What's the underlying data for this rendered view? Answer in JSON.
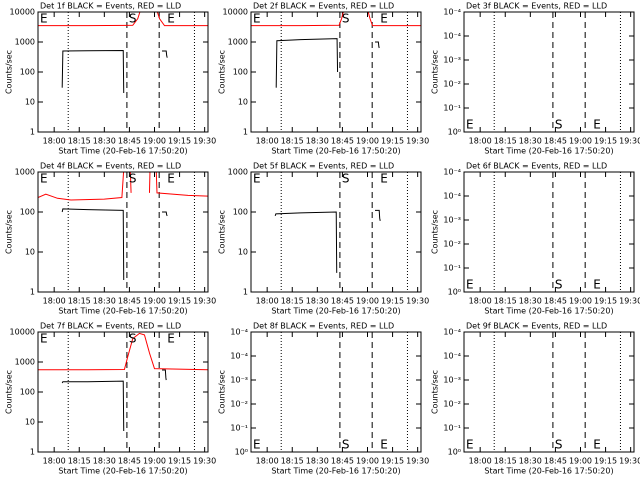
{
  "chart_data": [
    {
      "type": "line",
      "title": "Det 1f BLACK = Events, RED = LLD",
      "xlabel": "Start Time (20-Feb-16 17:50:20)",
      "ylabel": "Counts/sec",
      "log": true,
      "xlim": [
        1070.33,
        1172
      ],
      "xticks": [
        {
          "value": 1080,
          "label": "18:00"
        },
        {
          "value": 1095,
          "label": "18:15"
        },
        {
          "value": 1110,
          "label": "18:30"
        },
        {
          "value": 1125,
          "label": "18:45"
        },
        {
          "value": 1140,
          "label": "19:00"
        },
        {
          "value": 1155,
          "label": "19:15"
        },
        {
          "value": 1170,
          "label": "19:30"
        }
      ],
      "ylim": [
        1,
        10000
      ],
      "yticks": [
        1,
        10,
        100,
        1000,
        10000
      ],
      "series": [
        {
          "color": "#000000",
          "x": [
            1084.8,
            1085.2,
            1100,
            1121.3,
            1121.6,
            1130,
            1144.5,
            1147,
            1147.3,
            1147.6
          ],
          "values": [
            30,
            500,
            510,
            520,
            20,
            null,
            500,
            500,
            350,
            300
          ]
        },
        {
          "color": "#ff0000",
          "x": [
            1070.33,
            1100,
            1127,
            1130,
            1133,
            1140,
            1143,
            1146,
            1172
          ],
          "values": [
            3500,
            3500,
            3600,
            6000,
            20000,
            20000,
            6000,
            3500,
            3500
          ]
        }
      ],
      "vlines": [
        {
          "x": 1088.4,
          "style": "dotted"
        },
        {
          "x": 1123.5,
          "style": "dashed"
        },
        {
          "x": 1142.8,
          "style": "dashed"
        },
        {
          "x": 1163.9,
          "style": "dotted"
        }
      ],
      "annotations": [
        {
          "text": "E",
          "x": 1071.5
        },
        {
          "text": "S",
          "x": 1124.7
        },
        {
          "text": "E",
          "x": 1147.6
        }
      ]
    },
    {
      "type": "line",
      "title": "Det 2f BLACK = Events, RED = LLD",
      "xlabel": "Start Time (20-Feb-16 17:50:20)",
      "ylabel": "Counts/sec",
      "log": true,
      "xlim": [
        1070.33,
        1172
      ],
      "xticks": [
        {
          "value": 1080,
          "label": "18:00"
        },
        {
          "value": 1095,
          "label": "18:15"
        },
        {
          "value": 1110,
          "label": "18:30"
        },
        {
          "value": 1125,
          "label": "18:45"
        },
        {
          "value": 1140,
          "label": "19:00"
        },
        {
          "value": 1155,
          "label": "19:15"
        },
        {
          "value": 1170,
          "label": "19:30"
        }
      ],
      "ylim": [
        1,
        10000
      ],
      "yticks": [
        1,
        10,
        100,
        1000,
        10000
      ],
      "series": [
        {
          "color": "#000000",
          "x": [
            1085.4,
            1085.8,
            1100,
            1121.8,
            1122.1,
            1130,
            1144.5,
            1146.5,
            1146.8,
            1147
          ],
          "values": [
            30,
            1100,
            1200,
            1300,
            100,
            null,
            1000,
            1000,
            700,
            630
          ]
        },
        {
          "color": "#ff0000",
          "x": [
            1070.33,
            1100,
            1123,
            1124.5,
            1127,
            1139,
            1141.5,
            1143,
            1172
          ],
          "values": [
            3500,
            3500,
            3600,
            6000,
            20000,
            20000,
            6000,
            3500,
            3500
          ]
        }
      ],
      "vlines": [
        {
          "x": 1088.4,
          "style": "dotted"
        },
        {
          "x": 1123.5,
          "style": "dashed"
        },
        {
          "x": 1142.8,
          "style": "dashed"
        },
        {
          "x": 1163.9,
          "style": "dotted"
        }
      ],
      "annotations": [
        {
          "text": "E",
          "x": 1071.5
        },
        {
          "text": "S",
          "x": 1124.7
        },
        {
          "text": "E",
          "x": 1147.6
        }
      ]
    },
    {
      "type": "line",
      "title": "Det 3f BLACK = Events, RED = LLD",
      "xlabel": "Start Time (20-Feb-16 17:50:20)",
      "ylabel": "Counts/sec",
      "log": false,
      "xlim": [
        1070.33,
        1172
      ],
      "xticks": [
        {
          "value": 1080,
          "label": "18:00"
        },
        {
          "value": 1095,
          "label": "18:15"
        },
        {
          "value": 1110,
          "label": "18:30"
        },
        {
          "value": 1125,
          "label": "18:45"
        },
        {
          "value": 1140,
          "label": "19:00"
        },
        {
          "value": 1155,
          "label": "19:15"
        },
        {
          "value": 1170,
          "label": "19:30"
        }
      ],
      "ylim": [
        0,
        5
      ],
      "yticks": [
        {
          "value": 0,
          "label": "10⁰"
        },
        {
          "value": 1,
          "label": "10⁻¹"
        },
        {
          "value": 2,
          "label": "10⁻²"
        },
        {
          "value": 3,
          "label": "10⁻³"
        },
        {
          "value": 4,
          "label": "10⁻⁴"
        },
        {
          "value": 5,
          "label": "10⁻⁴"
        }
      ],
      "series": [],
      "vlines": [
        {
          "x": 1088.4,
          "style": "dotted"
        },
        {
          "x": 1123.5,
          "style": "dashed"
        },
        {
          "x": 1142.8,
          "style": "dashed"
        },
        {
          "x": 1163.9,
          "style": "dotted"
        }
      ],
      "annotations": [
        {
          "text": "E",
          "x": 1071.5
        },
        {
          "text": "S",
          "x": 1124.7
        },
        {
          "text": "E",
          "x": 1147.6
        }
      ]
    },
    {
      "type": "line",
      "title": "Det 4f BLACK = Events, RED = LLD",
      "xlabel": "Start Time (20-Feb-16 17:50:20)",
      "ylabel": "Counts/sec",
      "log": true,
      "xlim": [
        1070.33,
        1172
      ],
      "xticks": [
        {
          "value": 1080,
          "label": "18:00"
        },
        {
          "value": 1095,
          "label": "18:15"
        },
        {
          "value": 1110,
          "label": "18:30"
        },
        {
          "value": 1125,
          "label": "18:45"
        },
        {
          "value": 1140,
          "label": "19:00"
        },
        {
          "value": 1155,
          "label": "19:15"
        },
        {
          "value": 1170,
          "label": "19:30"
        }
      ],
      "ylim": [
        1,
        1000
      ],
      "yticks": [
        1,
        10,
        100,
        1000
      ],
      "series": [
        {
          "color": "#000000",
          "x": [
            1084.8,
            1085.2,
            1100,
            1121.3,
            1121.6,
            1130,
            1144.5,
            1147,
            1147.3,
            1147.6
          ],
          "values": [
            100,
            120,
            115,
            110,
            2,
            null,
            100,
            100,
            85,
            80
          ]
        },
        {
          "color": "#ff0000",
          "x": [
            1070.33,
            1075,
            1082,
            1090,
            1110,
            1120.5,
            1121.5,
            1122.5,
            1124.5,
            1126,
            1130,
            1137,
            1138,
            1140,
            1141.5,
            1160,
            1172
          ],
          "values": [
            230,
            280,
            220,
            200,
            210,
            230,
            1000,
            20000,
            20000,
            300,
            null,
            300,
            20000,
            20000,
            300,
            260,
            250
          ]
        }
      ],
      "vlines": [
        {
          "x": 1088.4,
          "style": "dotted"
        },
        {
          "x": 1123.5,
          "style": "dashed"
        },
        {
          "x": 1142.8,
          "style": "dashed"
        },
        {
          "x": 1163.9,
          "style": "dotted"
        }
      ],
      "annotations": [
        {
          "text": "E",
          "x": 1071.5
        },
        {
          "text": "S",
          "x": 1124.7
        },
        {
          "text": "E",
          "x": 1147.6
        }
      ]
    },
    {
      "type": "line",
      "title": "Det 5f BLACK = Events, RED = LLD",
      "xlabel": "Start Time (20-Feb-16 17:50:20)",
      "ylabel": "Counts/sec",
      "log": true,
      "xlim": [
        1070.33,
        1172
      ],
      "xticks": [
        {
          "value": 1080,
          "label": "18:00"
        },
        {
          "value": 1095,
          "label": "18:15"
        },
        {
          "value": 1110,
          "label": "18:30"
        },
        {
          "value": 1125,
          "label": "18:45"
        },
        {
          "value": 1140,
          "label": "19:00"
        },
        {
          "value": 1155,
          "label": "19:15"
        },
        {
          "value": 1170,
          "label": "19:30"
        }
      ],
      "ylim": [
        1,
        1000
      ],
      "yticks": [
        1,
        10,
        100,
        1000
      ],
      "series": [
        {
          "color": "#000000",
          "x": [
            1084.8,
            1085.2,
            1100,
            1121.3,
            1121.6,
            1130,
            1144.5,
            1147,
            1147.3,
            1147.6
          ],
          "values": [
            80,
            90,
            95,
            100,
            3,
            null,
            110,
            110,
            70,
            60
          ]
        }
      ],
      "vlines": [
        {
          "x": 1088.4,
          "style": "dotted"
        },
        {
          "x": 1123.5,
          "style": "dashed"
        },
        {
          "x": 1142.8,
          "style": "dashed"
        },
        {
          "x": 1163.9,
          "style": "dotted"
        }
      ],
      "annotations": [
        {
          "text": "E",
          "x": 1071.5
        },
        {
          "text": "S",
          "x": 1124.7
        },
        {
          "text": "E",
          "x": 1147.6
        }
      ]
    },
    {
      "type": "line",
      "title": "Det 6f BLACK = Events, RED = LLD",
      "xlabel": "Start Time (20-Feb-16 17:50:20)",
      "ylabel": "Counts/sec",
      "log": false,
      "xlim": [
        1070.33,
        1172
      ],
      "xticks": [
        {
          "value": 1080,
          "label": "18:00"
        },
        {
          "value": 1095,
          "label": "18:15"
        },
        {
          "value": 1110,
          "label": "18:30"
        },
        {
          "value": 1125,
          "label": "18:45"
        },
        {
          "value": 1140,
          "label": "19:00"
        },
        {
          "value": 1155,
          "label": "19:15"
        },
        {
          "value": 1170,
          "label": "19:30"
        }
      ],
      "ylim": [
        0,
        5
      ],
      "yticks": [
        {
          "value": 0,
          "label": "10⁰"
        },
        {
          "value": 1,
          "label": "10⁻¹"
        },
        {
          "value": 2,
          "label": "10⁻²"
        },
        {
          "value": 3,
          "label": "10⁻³"
        },
        {
          "value": 4,
          "label": "10⁻⁴"
        },
        {
          "value": 5,
          "label": "10⁻⁴"
        }
      ],
      "series": [],
      "vlines": [
        {
          "x": 1088.4,
          "style": "dotted"
        },
        {
          "x": 1123.5,
          "style": "dashed"
        },
        {
          "x": 1142.8,
          "style": "dashed"
        },
        {
          "x": 1163.9,
          "style": "dotted"
        }
      ],
      "annotations": [
        {
          "text": "E",
          "x": 1071.5
        },
        {
          "text": "S",
          "x": 1124.7
        },
        {
          "text": "E",
          "x": 1147.6
        }
      ]
    },
    {
      "type": "line",
      "title": "Det 7f BLACK = Events, RED = LLD",
      "xlabel": "Start Time (20-Feb-16 17:50:20)",
      "ylabel": "Counts/sec",
      "log": true,
      "xlim": [
        1070.33,
        1172
      ],
      "xticks": [
        {
          "value": 1080,
          "label": "18:00"
        },
        {
          "value": 1095,
          "label": "18:15"
        },
        {
          "value": 1110,
          "label": "18:30"
        },
        {
          "value": 1125,
          "label": "18:45"
        },
        {
          "value": 1140,
          "label": "19:00"
        },
        {
          "value": 1155,
          "label": "19:15"
        },
        {
          "value": 1170,
          "label": "19:30"
        }
      ],
      "ylim": [
        1,
        10000
      ],
      "yticks": [
        1,
        10,
        100,
        1000,
        10000
      ],
      "series": [
        {
          "color": "#000000",
          "x": [
            1084.8,
            1085.2,
            1100,
            1121.3,
            1121.6,
            1130,
            1144.5,
            1146.5,
            1146.8,
            1147
          ],
          "values": [
            200,
            220,
            220,
            230,
            5,
            null,
            540,
            540,
            300,
            250
          ]
        },
        {
          "color": "#ff0000",
          "x": [
            1070.33,
            1100,
            1122,
            1124,
            1127,
            1131,
            1134,
            1137,
            1140,
            1172
          ],
          "values": [
            550,
            550,
            560,
            1500,
            6000,
            9000,
            8000,
            2000,
            600,
            550
          ]
        }
      ],
      "vlines": [
        {
          "x": 1088.4,
          "style": "dotted"
        },
        {
          "x": 1123.5,
          "style": "dashed"
        },
        {
          "x": 1142.8,
          "style": "dashed"
        },
        {
          "x": 1163.9,
          "style": "dotted"
        }
      ],
      "annotations": [
        {
          "text": "E",
          "x": 1071.5
        },
        {
          "text": "S",
          "x": 1124.7
        },
        {
          "text": "E",
          "x": 1147.6
        }
      ]
    },
    {
      "type": "line",
      "title": "Det 8f BLACK = Events, RED = LLD",
      "xlabel": "Start Time (20-Feb-16 17:50:20)",
      "ylabel": "Counts/sec",
      "log": false,
      "xlim": [
        1070.33,
        1172
      ],
      "xticks": [
        {
          "value": 1080,
          "label": "18:00"
        },
        {
          "value": 1095,
          "label": "18:15"
        },
        {
          "value": 1110,
          "label": "18:30"
        },
        {
          "value": 1125,
          "label": "18:45"
        },
        {
          "value": 1140,
          "label": "19:00"
        },
        {
          "value": 1155,
          "label": "19:15"
        },
        {
          "value": 1170,
          "label": "19:30"
        }
      ],
      "ylim": [
        0,
        5
      ],
      "yticks": [
        {
          "value": 0,
          "label": "10⁰"
        },
        {
          "value": 1,
          "label": "10⁻¹"
        },
        {
          "value": 2,
          "label": "10⁻²"
        },
        {
          "value": 3,
          "label": "10⁻³"
        },
        {
          "value": 4,
          "label": "10⁻⁴"
        },
        {
          "value": 5,
          "label": "10⁻⁴"
        }
      ],
      "series": [],
      "vlines": [
        {
          "x": 1088.4,
          "style": "dotted"
        },
        {
          "x": 1123.5,
          "style": "dashed"
        },
        {
          "x": 1142.8,
          "style": "dashed"
        },
        {
          "x": 1163.9,
          "style": "dotted"
        }
      ],
      "annotations": [
        {
          "text": "E",
          "x": 1071.5
        },
        {
          "text": "S",
          "x": 1124.7
        },
        {
          "text": "E",
          "x": 1147.6
        }
      ]
    },
    {
      "type": "line",
      "title": "Det 9f BLACK = Events, RED = LLD",
      "xlabel": "Start Time (20-Feb-16 17:50:20)",
      "ylabel": "Counts/sec",
      "log": false,
      "xlim": [
        1070.33,
        1172
      ],
      "xticks": [
        {
          "value": 1080,
          "label": "18:00"
        },
        {
          "value": 1095,
          "label": "18:15"
        },
        {
          "value": 1110,
          "label": "18:30"
        },
        {
          "value": 1125,
          "label": "18:45"
        },
        {
          "value": 1140,
          "label": "19:00"
        },
        {
          "value": 1155,
          "label": "19:15"
        },
        {
          "value": 1170,
          "label": "19:30"
        }
      ],
      "ylim": [
        0,
        5
      ],
      "yticks": [
        {
          "value": 0,
          "label": "10⁰"
        },
        {
          "value": 1,
          "label": "10⁻¹"
        },
        {
          "value": 2,
          "label": "10⁻²"
        },
        {
          "value": 3,
          "label": "10⁻³"
        },
        {
          "value": 4,
          "label": "10⁻⁴"
        },
        {
          "value": 5,
          "label": "10⁻⁴"
        }
      ],
      "series": [],
      "vlines": [
        {
          "x": 1088.4,
          "style": "dotted"
        },
        {
          "x": 1123.5,
          "style": "dashed"
        },
        {
          "x": 1142.8,
          "style": "dashed"
        },
        {
          "x": 1163.9,
          "style": "dotted"
        }
      ],
      "annotations": [
        {
          "text": "E",
          "x": 1071.5
        },
        {
          "text": "S",
          "x": 1124.7
        },
        {
          "text": "E",
          "x": 1147.6
        }
      ]
    }
  ]
}
